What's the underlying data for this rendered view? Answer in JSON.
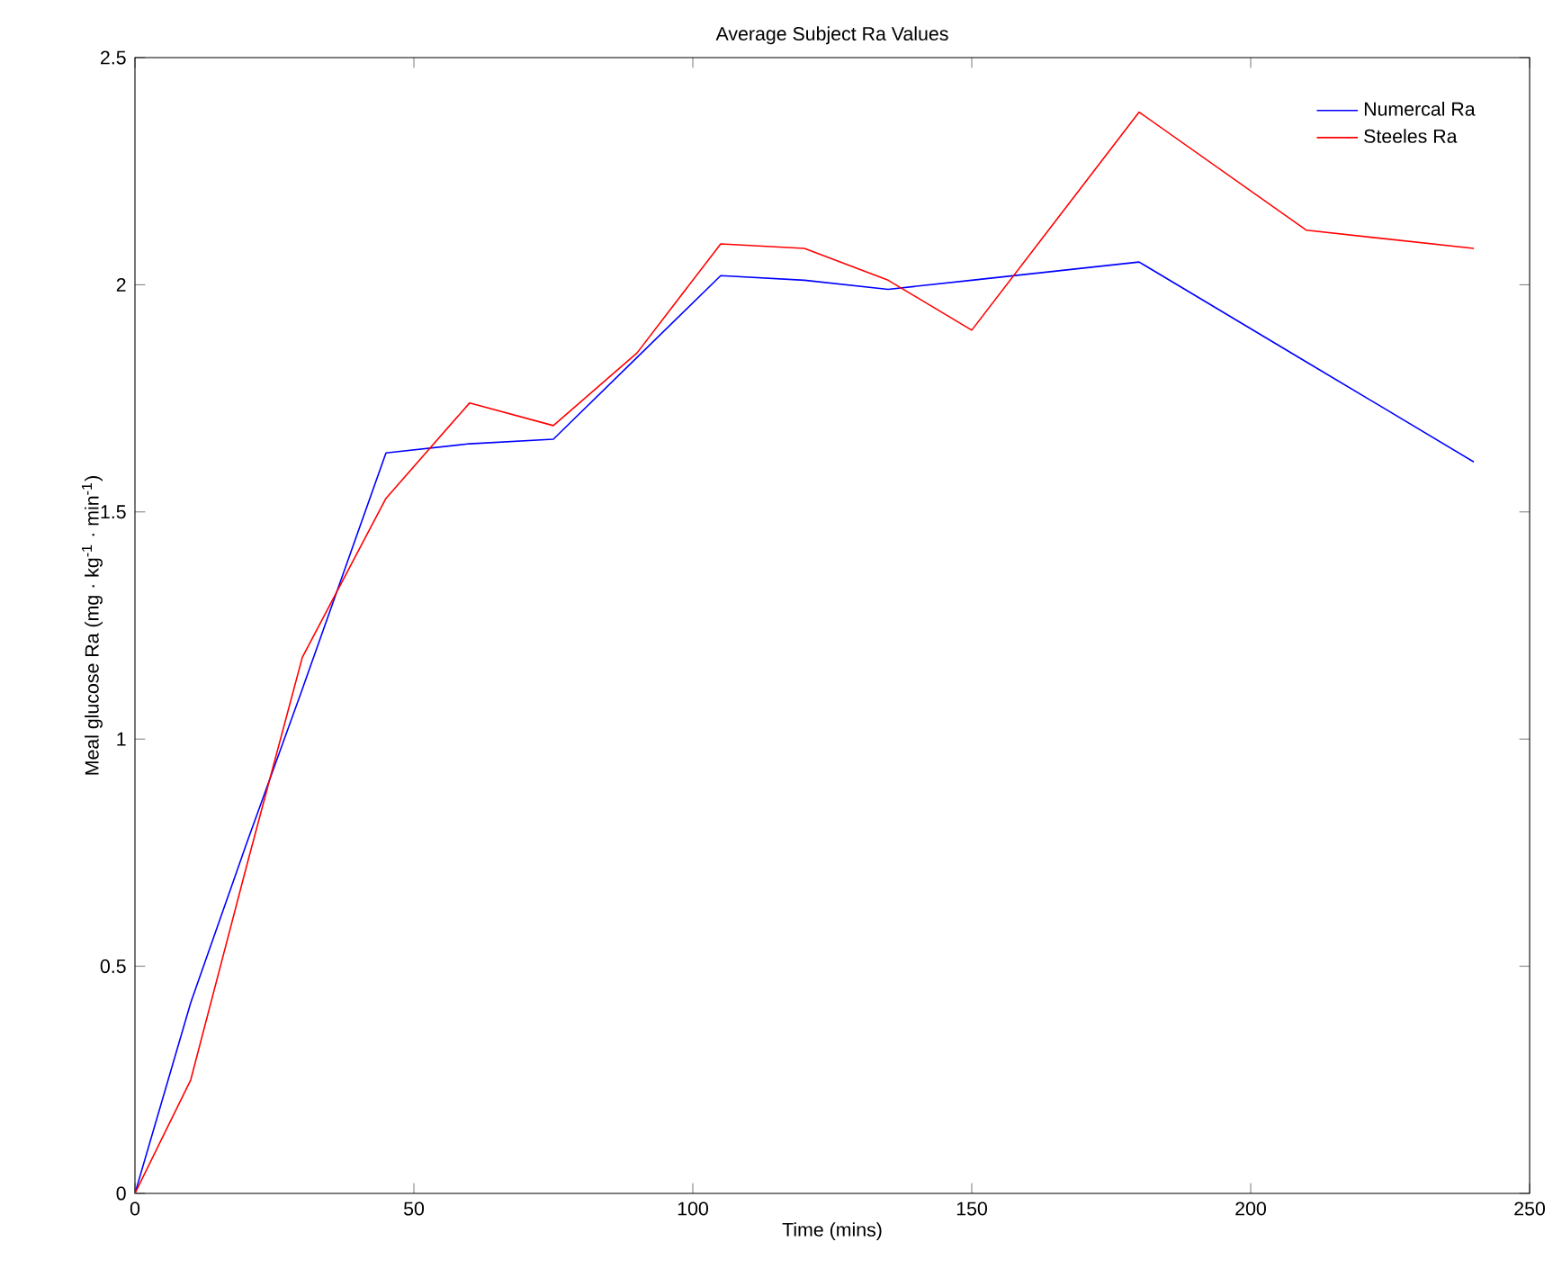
{
  "chart_data": {
    "type": "line",
    "title": "Average Subject Ra Values",
    "xlabel": "Time (mins)",
    "ylabel": "Meal glucose Ra (mg · kg$^{-1}$ · min$^{-1}$)",
    "x": [
      0,
      10,
      20,
      30,
      45,
      60,
      75,
      90,
      105,
      120,
      135,
      150,
      180,
      210,
      240
    ],
    "series": [
      {
        "name": "Numercal Ra",
        "color": "#0000ff",
        "values": [
          0,
          0.42,
          0.77,
          1.11,
          1.63,
          1.65,
          1.66,
          1.84,
          2.02,
          2.01,
          1.99,
          2.01,
          2.05,
          1.83,
          1.61
        ]
      },
      {
        "name": "Steeles Ra",
        "color": "#ff0000",
        "values": [
          0,
          0.25,
          0.72,
          1.18,
          1.53,
          1.74,
          1.69,
          1.85,
          2.09,
          2.08,
          2.01,
          1.9,
          2.38,
          2.12,
          2.08
        ]
      }
    ],
    "xlim": [
      0,
      250
    ],
    "ylim": [
      0,
      2.5
    ],
    "xticks": [
      0,
      50,
      100,
      150,
      200,
      250
    ],
    "yticks": [
      0,
      0.5,
      1,
      1.5,
      2,
      2.5
    ],
    "grid": false,
    "legend": "top right",
    "marker": "none",
    "line_style": "solid"
  }
}
